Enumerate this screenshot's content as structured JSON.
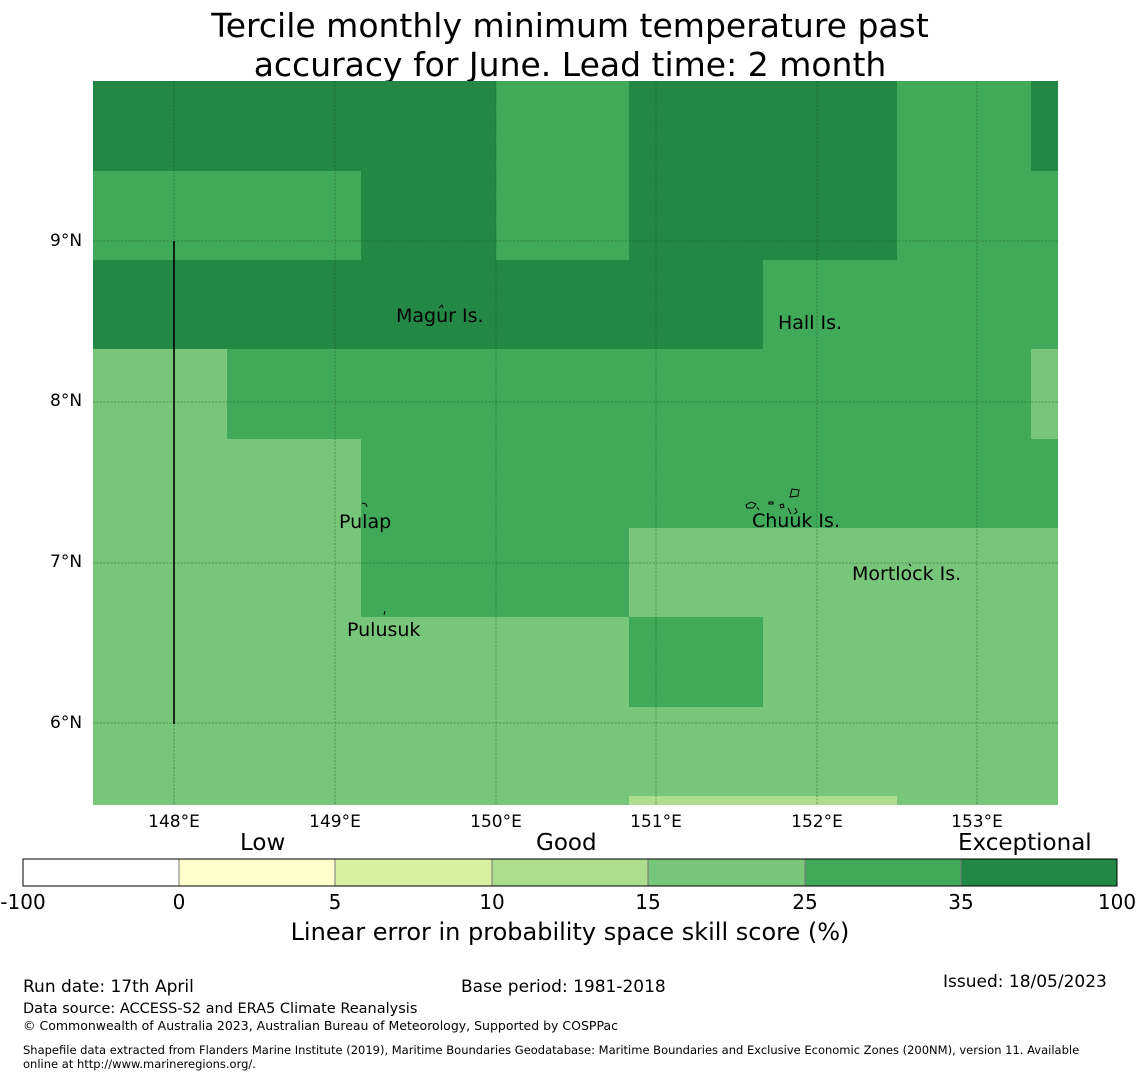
{
  "title": {
    "line1": "Tercile monthly minimum temperature past",
    "line2": "accuracy for June. Lead time: 2 month"
  },
  "map": {
    "lat_labels": [
      "9°N",
      "8°N",
      "7°N",
      "6°N"
    ],
    "lon_labels": [
      "148°E",
      "149°E",
      "150°E",
      "151°E",
      "152°E",
      "153°E"
    ],
    "places": [
      {
        "name": "Magur Is."
      },
      {
        "name": "Hall Is."
      },
      {
        "name": "Pulap"
      },
      {
        "name": "Chuuk Is."
      },
      {
        "name": "Mortlock Is."
      },
      {
        "name": "Pulusuk"
      }
    ],
    "colors": {
      "exceptional": "#238843",
      "good_high": "#40aa5a",
      "good_mid": "#78c679",
      "good_low": "#addd8e",
      "low_high": "#d9f0a3",
      "low": "#ffffcc",
      "none": "#ffffff"
    }
  },
  "colorbar": {
    "category_labels": [
      "Low",
      "Good",
      "Exceptional"
    ],
    "ticks": [
      "-100",
      "0",
      "5",
      "10",
      "15",
      "25",
      "35",
      "100"
    ],
    "colors": [
      "#ffffff",
      "#ffffcc",
      "#d9f0a3",
      "#addd8e",
      "#78c679",
      "#40aa5a",
      "#238843"
    ],
    "title": "Linear error in probability space skill score (%)"
  },
  "footer": {
    "run_date": "Run date: 17th April",
    "base_period": "Base period: 1981-2018",
    "issued": "Issued: 18/05/2023",
    "data_source": "Data source: ACCESS-S2 and ERA5 Climate Reanalysis",
    "copyright": "© Commonwealth of Australia 2023, Australian Bureau of Meteorology, Supported by COSPPac",
    "shapefile_line1": "Shapefile data extracted from Flanders Marine Institute (2019), Maritime Boundaries Geodatabase: Maritime Boundaries and Exclusive Economic Zones (200NM), version 11. Available",
    "shapefile_line2": "online at http://www.marineregions.org/."
  }
}
